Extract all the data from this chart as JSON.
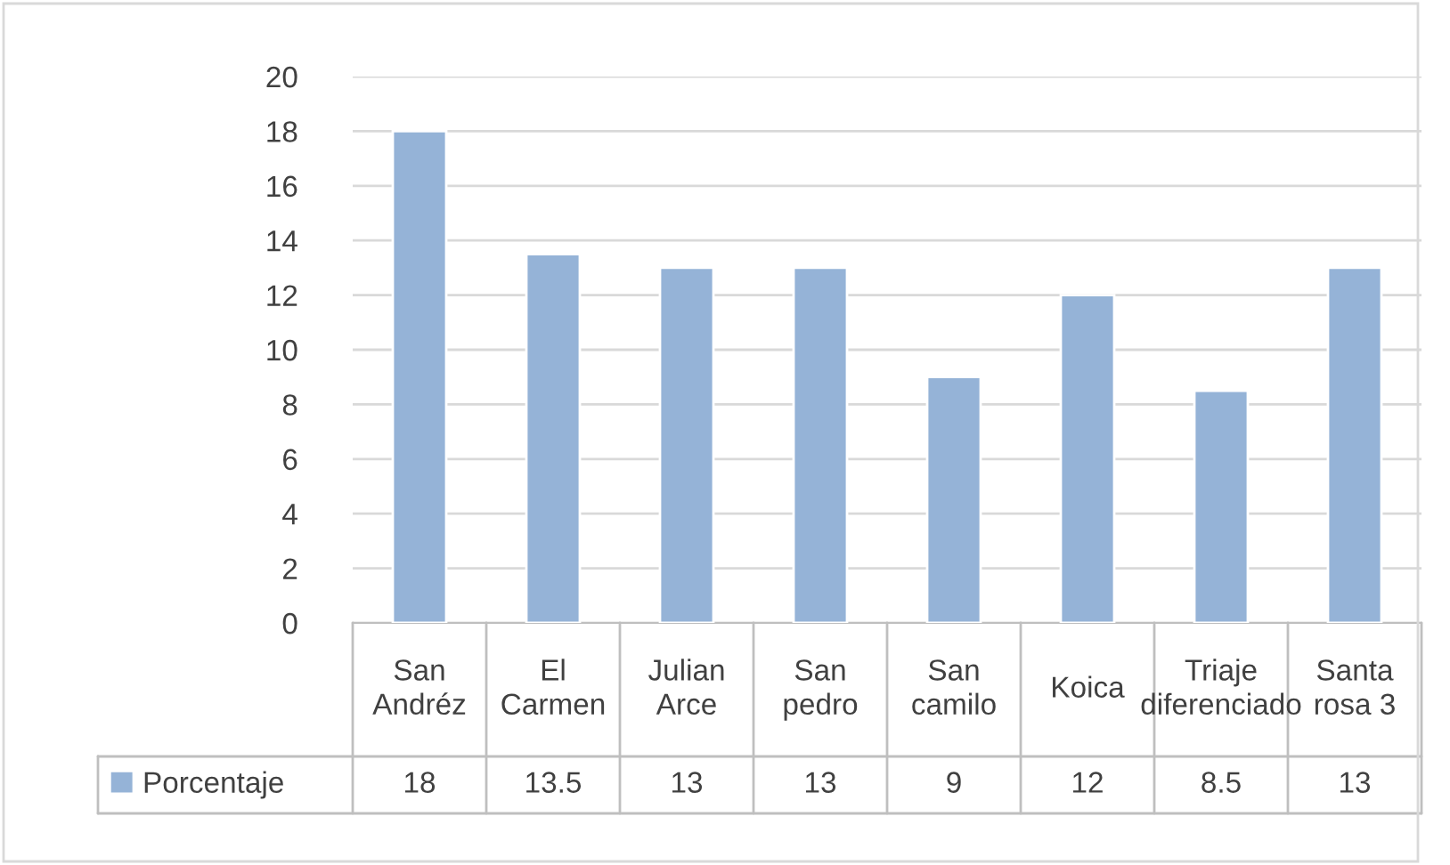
{
  "chart_data": {
    "type": "bar",
    "categories": [
      "San Andréz",
      "El Carmen",
      "Julian Arce",
      "San pedro",
      "San camilo",
      "Koica",
      "Triaje diferenciado",
      "Santa rosa 3"
    ],
    "series": [
      {
        "name": "Porcentaje",
        "color": "#95b3d7",
        "values": [
          18,
          13.5,
          13,
          13,
          9,
          12,
          8.5,
          13
        ]
      }
    ],
    "ylim": [
      0,
      20
    ],
    "yticks": [
      0,
      2,
      4,
      6,
      8,
      10,
      12,
      14,
      16,
      18,
      20
    ],
    "grid": "y",
    "legend": "bottom left",
    "data_labels": true
  }
}
